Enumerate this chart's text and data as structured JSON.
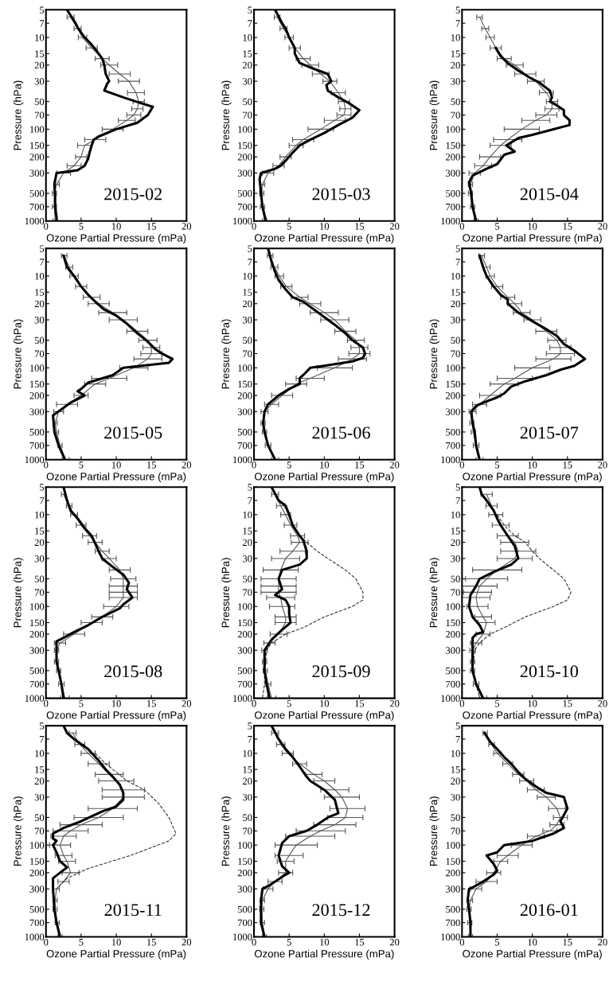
{
  "chart_data": [
    {
      "type": "line",
      "xlabel": "Ozone Partial Pressure (mPa)",
      "ylabel": "Pressure (hPa)",
      "annotations": [
        "2015-02"
      ],
      "log": "y",
      "xlim": [
        0,
        20
      ],
      "ylim": [
        1000,
        5
      ],
      "xticks": [
        0,
        5,
        10,
        15,
        20
      ],
      "yticks": [
        5,
        7,
        10,
        15,
        20,
        30,
        50,
        70,
        100,
        150,
        200,
        300,
        500,
        700,
        1000
      ],
      "series": [
        {
          "color": "#000000",
          "line_style": "solid",
          "x": [
            3,
            4.2,
            4.6,
            5.5,
            6.5,
            7.2,
            8,
            8.3,
            8.5,
            9,
            8.7,
            8.3,
            11,
            13.5,
            15.2,
            14.5,
            13,
            10,
            7.5,
            6.8,
            6.5,
            6.2,
            6,
            5.5,
            4.5,
            1.5,
            1.2,
            1.3,
            1.3,
            1.5,
            1.5
          ],
          "values": [
            5,
            7,
            8,
            10,
            12,
            14,
            17,
            20,
            25,
            30,
            32,
            38,
            45,
            52,
            57,
            70,
            85,
            100,
            120,
            130,
            150,
            180,
            210,
            250,
            280,
            300,
            400,
            550,
            700,
            900,
            1000
          ]
        },
        {
          "color": "#555555",
          "line_style": "solid",
          "x": [
            3.5,
            4.5,
            5.2,
            6.5,
            8,
            9,
            10.5,
            11.8,
            12.8,
            13.2,
            13,
            12.5,
            11.5,
            9.5,
            7,
            5.5,
            5,
            4,
            2.5,
            1.5,
            1.2,
            1.2,
            1.3
          ],
          "values": [
            6,
            8,
            10,
            13,
            17,
            20,
            25,
            30,
            40,
            50,
            60,
            70,
            80,
            100,
            130,
            150,
            200,
            250,
            300,
            400,
            500,
            700,
            1000
          ],
          "xerrors": [
            0.5,
            0.5,
            0.6,
            0.8,
            1,
            1.2,
            1.5,
            1.5,
            1.2,
            0.8,
            0.8,
            1,
            1.2,
            1.5,
            1.5,
            1,
            0.8,
            1,
            1,
            0.4,
            0.3,
            0.3,
            0.3
          ]
        }
      ]
    },
    {
      "type": "line",
      "xlabel": "Ozone Partial Pressure (mPa)",
      "ylabel": "Pressure (hPa)",
      "annotations": [
        "2015-03"
      ],
      "log": "y",
      "xlim": [
        0,
        20
      ],
      "ylim": [
        1000,
        5
      ],
      "xticks": [
        0,
        5,
        10,
        15,
        20
      ],
      "yticks": [
        5,
        7,
        10,
        15,
        20,
        30,
        50,
        70,
        100,
        150,
        200,
        300,
        500,
        700,
        1000
      ],
      "series": [
        {
          "color": "#000000",
          "line_style": "solid",
          "x": [
            3,
            4,
            4.5,
            5,
            5.8,
            5.8,
            6.5,
            8.5,
            10.5,
            11,
            10.3,
            10.5,
            12,
            13.5,
            15,
            14,
            12,
            10,
            8,
            6.5,
            5.5,
            4.5,
            3.8,
            3,
            1,
            0.8,
            1,
            1.2,
            1.7
          ],
          "values": [
            5,
            7,
            8,
            10,
            13,
            15,
            19,
            22,
            25,
            30,
            33,
            38,
            45,
            52,
            62,
            75,
            90,
            110,
            130,
            150,
            180,
            220,
            250,
            270,
            300,
            350,
            500,
            700,
            1000
          ]
        },
        {
          "color": "#555555",
          "line_style": "solid",
          "x": [
            3.3,
            4.2,
            5,
            5.8,
            7,
            8,
            9.5,
            10.8,
            12,
            12.8,
            13,
            12.8,
            11.5,
            9.5,
            7,
            6,
            4.5,
            3.5,
            2,
            1.2,
            1.1,
            1.2,
            1.5
          ],
          "values": [
            6,
            8,
            10,
            13,
            17,
            20,
            25,
            30,
            40,
            50,
            60,
            70,
            80,
            100,
            130,
            150,
            200,
            250,
            300,
            400,
            500,
            700,
            1000
          ],
          "xerrors": [
            0.4,
            0.5,
            0.6,
            0.8,
            1,
            1.2,
            1.2,
            1,
            1,
            0.8,
            0.8,
            1,
            1.5,
            1.8,
            1.5,
            1,
            0.8,
            0.8,
            0.8,
            0.3,
            0.3,
            0.3,
            0.3
          ]
        }
      ]
    },
    {
      "type": "line",
      "xlabel": "Ozone Partial Pressure (mPa)",
      "ylabel": "Pressure (hPa)",
      "annotations": [
        "2015-04"
      ],
      "log": "y",
      "xlim": [
        0,
        20
      ],
      "ylim": [
        1000,
        5
      ],
      "xticks": [
        0,
        5,
        10,
        15,
        20
      ],
      "yticks": [
        5,
        7,
        10,
        15,
        20,
        30,
        50,
        70,
        100,
        150,
        200,
        300,
        500,
        700,
        1000
      ],
      "series": [
        {
          "color": "#000000",
          "line_style": "solid",
          "x": [
            4.8,
            5.5,
            6.5,
            8,
            9.5,
            11,
            12.5,
            12.8,
            12.5,
            13.5,
            14.5,
            14.5,
            15.3,
            15.3,
            13,
            10,
            8,
            6.3,
            7.5,
            6,
            5,
            3.5,
            1.5,
            1,
            1.3,
            1.5,
            2
          ],
          "values": [
            13,
            16,
            19,
            23,
            27,
            31,
            38,
            45,
            50,
            55,
            62,
            70,
            80,
            90,
            100,
            115,
            125,
            150,
            175,
            190,
            240,
            270,
            320,
            380,
            500,
            700,
            1000
          ]
        },
        {
          "color": "#555555",
          "line_style": "solid",
          "x": [
            2.5,
            3.3,
            4,
            4.8,
            6,
            7.5,
            9,
            10.5,
            12,
            12.8,
            12.8,
            12,
            10.5,
            8.5,
            6.5,
            5.5,
            4,
            3,
            1.8,
            1.2,
            1.2,
            1.5,
            2
          ],
          "values": [
            6,
            8,
            10,
            13,
            17,
            20,
            25,
            30,
            40,
            50,
            60,
            70,
            80,
            100,
            130,
            150,
            200,
            250,
            300,
            400,
            500,
            700,
            1000
          ],
          "xerrors": [
            0.4,
            0.5,
            0.6,
            0.8,
            1,
            1.2,
            1.5,
            1.2,
            1,
            0.8,
            1,
            1.5,
            2,
            2.5,
            2,
            1.5,
            1.5,
            1.2,
            0.8,
            0.3,
            0.3,
            0.3,
            0.3
          ]
        }
      ]
    },
    {
      "type": "line",
      "xlabel": "Ozone Partial Pressure (mPa)",
      "ylabel": "Pressure (hPa)",
      "annotations": [
        "2015-05"
      ],
      "log": "y",
      "xlim": [
        0,
        20
      ],
      "ylim": [
        1000,
        5
      ],
      "xticks": [
        0,
        5,
        10,
        15,
        20
      ],
      "yticks": [
        5,
        7,
        10,
        15,
        20,
        30,
        50,
        70,
        100,
        150,
        200,
        300,
        500,
        700,
        1000
      ],
      "series": [
        {
          "color": "#000000",
          "line_style": "solid",
          "x": [
            2.5,
            3,
            4,
            5,
            6,
            7,
            8.2,
            10,
            11.5,
            13,
            14.5,
            15.5,
            16.5,
            18,
            17.5,
            11,
            9.5,
            6,
            5,
            4.5,
            5.5,
            3.5,
            1,
            1.2,
            1.8,
            2.7
          ],
          "values": [
            6,
            8,
            10,
            13,
            16,
            19,
            23,
            27,
            33,
            42,
            52,
            62,
            70,
            80,
            88,
            100,
            120,
            145,
            170,
            180,
            200,
            240,
            330,
            500,
            700,
            1000
          ]
        },
        {
          "color": "#555555",
          "line_style": "solid",
          "x": [
            2.6,
            3.3,
            4,
            5,
            6.5,
            7.5,
            9.5,
            11,
            13,
            14.5,
            15,
            15,
            14.5,
            12.5,
            9,
            7,
            5,
            3,
            1.8,
            1.3,
            1.5,
            2,
            2.8
          ],
          "values": [
            6,
            8,
            10,
            13,
            17,
            20,
            25,
            30,
            40,
            50,
            60,
            70,
            80,
            100,
            130,
            150,
            200,
            250,
            300,
            400,
            500,
            700,
            1000
          ],
          "xerrors": [
            0.4,
            0.5,
            0.6,
            0.8,
            1.2,
            1.5,
            2,
            2,
            1.5,
            1.3,
            1.2,
            1.5,
            2,
            2,
            2.5,
            1.5,
            1,
            1.5,
            0.7,
            0.3,
            0.3,
            0.3,
            0.5
          ]
        }
      ]
    },
    {
      "type": "line",
      "xlabel": "Ozone Partial Pressure (mPa)",
      "ylabel": "Pressure (hPa)",
      "annotations": [
        "2015-06"
      ],
      "log": "y",
      "xlim": [
        0,
        20
      ],
      "ylim": [
        1000,
        5
      ],
      "xticks": [
        0,
        5,
        10,
        15,
        20
      ],
      "yticks": [
        5,
        7,
        10,
        15,
        20,
        30,
        50,
        70,
        100,
        150,
        200,
        300,
        500,
        700,
        1000
      ],
      "series": [
        {
          "color": "#000000",
          "line_style": "solid",
          "x": [
            2,
            2.5,
            3,
            3.5,
            4.5,
            5.5,
            7,
            8.5,
            10,
            11.5,
            13,
            14,
            15.5,
            15.8,
            15.5,
            14,
            10,
            8,
            7,
            6.5,
            6.5,
            5,
            3.5,
            2,
            1.5,
            1.3,
            1.5,
            2,
            3
          ],
          "values": [
            5,
            7,
            9,
            11,
            14,
            17,
            19,
            23,
            28,
            34,
            42,
            50,
            60,
            70,
            78,
            85,
            95,
            100,
            120,
            130,
            150,
            170,
            200,
            250,
            300,
            400,
            500,
            700,
            1000
          ]
        },
        {
          "color": "#555555",
          "line_style": "solid",
          "x": [
            2.3,
            2.9,
            3.6,
            4.6,
            6.5,
            8,
            10,
            11.5,
            13,
            14.5,
            15,
            15,
            14,
            11.5,
            8,
            6,
            4,
            2.5,
            1.5,
            1.3,
            1.5,
            2,
            3
          ],
          "values": [
            6,
            8,
            10,
            13,
            17,
            20,
            25,
            30,
            40,
            50,
            60,
            70,
            80,
            100,
            130,
            150,
            200,
            250,
            300,
            400,
            500,
            700,
            1000
          ],
          "xerrors": [
            0.4,
            0.5,
            0.6,
            0.8,
            1.2,
            1.5,
            2,
            2,
            1.5,
            1.2,
            1.2,
            1.5,
            2,
            2.5,
            2,
            1.5,
            1.5,
            1,
            0.5,
            0.3,
            0.3,
            0.4,
            0.5
          ]
        }
      ]
    },
    {
      "type": "line",
      "xlabel": "Ozone Partial Pressure (mPa)",
      "ylabel": "Pressure (hPa)",
      "annotations": [
        "2015-07"
      ],
      "log": "y",
      "xlim": [
        0,
        20
      ],
      "ylim": [
        1000,
        5
      ],
      "xticks": [
        0,
        5,
        10,
        15,
        20
      ],
      "yticks": [
        5,
        7,
        10,
        15,
        20,
        30,
        50,
        70,
        100,
        150,
        200,
        300,
        500,
        700,
        1000
      ],
      "series": [
        {
          "color": "#000000",
          "line_style": "solid",
          "x": [
            2.5,
            3,
            3.5,
            4.5,
            5.5,
            6.5,
            6.5,
            8,
            10,
            12,
            13.5,
            14.5,
            16,
            17.5,
            16,
            14,
            12,
            9,
            7,
            6,
            5,
            3,
            2,
            1.3,
            1.5,
            1.8,
            2,
            2.5
          ],
          "values": [
            6,
            8,
            10,
            13,
            16,
            18,
            20,
            25,
            31,
            38,
            45,
            55,
            65,
            80,
            95,
            105,
            120,
            140,
            160,
            190,
            210,
            240,
            260,
            300,
            400,
            500,
            700,
            1000
          ]
        },
        {
          "color": "#555555",
          "line_style": "solid",
          "x": [
            2.8,
            3.5,
            4,
            5,
            6.5,
            7.5,
            8.5,
            10,
            12,
            13.5,
            14,
            14,
            13,
            10,
            7.5,
            6,
            4,
            2.5,
            1.5,
            1.4,
            1.6,
            2,
            2.5
          ],
          "values": [
            6,
            8,
            10,
            13,
            17,
            20,
            25,
            30,
            40,
            50,
            60,
            70,
            80,
            100,
            130,
            150,
            200,
            250,
            300,
            400,
            500,
            700,
            1000
          ],
          "xerrors": [
            0.4,
            0.5,
            0.6,
            0.8,
            1,
            1,
            1.2,
            1.2,
            1.5,
            1.3,
            1.5,
            2,
            2.5,
            2.5,
            2.5,
            2,
            1.5,
            1,
            0.5,
            0.3,
            0.3,
            0.4,
            0.5
          ]
        }
      ]
    },
    {
      "type": "line",
      "xlabel": "Ozone Partial Pressure (mPa)",
      "ylabel": "Pressure (hPa)",
      "annotations": [
        "2015-08"
      ],
      "log": "y",
      "xlim": [
        0,
        20
      ],
      "ylim": [
        1000,
        5
      ],
      "xticks": [
        0,
        5,
        10,
        15,
        20
      ],
      "yticks": [
        5,
        7,
        10,
        15,
        20,
        30,
        50,
        70,
        100,
        150,
        200,
        300,
        500,
        700,
        1000
      ],
      "series": [
        {
          "color": "#000000",
          "line_style": "solid",
          "x": [
            2.5,
            3,
            3.5,
            4.5,
            5.5,
            6.5,
            7.5,
            8,
            9.5,
            11,
            11.8,
            11.5,
            12.3,
            11,
            10.5,
            8,
            6,
            4,
            3,
            1.5,
            1.5,
            1.5,
            1.8,
            2.2,
            2.5
          ],
          "values": [
            5,
            7,
            9,
            11,
            14,
            17,
            25,
            30,
            37,
            45,
            55,
            65,
            80,
            95,
            105,
            130,
            160,
            190,
            210,
            240,
            300,
            400,
            500,
            700,
            1000
          ]
        },
        {
          "color": "#555555",
          "line_style": "solid",
          "x": [
            2.5,
            3.3,
            4,
            5,
            6.2,
            7,
            8,
            9,
            10.5,
            11,
            11,
            11,
            11,
            10,
            8,
            6.5,
            4,
            2,
            1.5,
            1.5,
            1.8,
            2.2,
            2.7
          ],
          "values": [
            6,
            8,
            10,
            13,
            17,
            20,
            25,
            30,
            40,
            50,
            60,
            70,
            80,
            100,
            130,
            150,
            200,
            250,
            300,
            400,
            500,
            700,
            1000
          ],
          "xerrors": [
            0.3,
            0.4,
            0.5,
            0.7,
            1,
            1,
            1,
            1,
            1.5,
            1.8,
            2,
            2,
            2,
            1.8,
            1.5,
            1.5,
            1.5,
            0.8,
            0.3,
            0.3,
            0.3,
            0.4,
            0.6
          ]
        }
      ]
    },
    {
      "type": "line",
      "xlabel": "Ozone Partial Pressure (mPa)",
      "ylabel": "Pressure (hPa)",
      "annotations": [
        "2015-09"
      ],
      "log": "y",
      "xlim": [
        0,
        20
      ],
      "ylim": [
        1000,
        5
      ],
      "xticks": [
        0,
        5,
        10,
        15,
        20
      ],
      "yticks": [
        5,
        7,
        10,
        15,
        20,
        30,
        50,
        70,
        100,
        150,
        200,
        300,
        500,
        700,
        1000
      ],
      "series": [
        {
          "color": "#000000",
          "line_style": "solid",
          "x": [
            2.5,
            3.5,
            4.5,
            5,
            5.5,
            6.5,
            7,
            7.5,
            7.5,
            6.5,
            4,
            3.5,
            4,
            3,
            4.5,
            5,
            5,
            5.2,
            4,
            2.5,
            1.5,
            1.5,
            1.8,
            2.2
          ],
          "values": [
            5,
            7,
            8,
            10,
            13,
            17,
            19,
            25,
            30,
            35,
            40,
            50,
            65,
            75,
            85,
            100,
            120,
            150,
            180,
            230,
            300,
            500,
            700,
            1000
          ]
        },
        {
          "color": "#555555",
          "line_style": "solid",
          "x": [
            3,
            3.8,
            4.5,
            5.2,
            6.2,
            6.5,
            5.5,
            4.5,
            3.8,
            3.5,
            3.5,
            3.5,
            3.8,
            4,
            4.5,
            4.5,
            3.5,
            2.2,
            1.5,
            1.5,
            1.6,
            2,
            2.5
          ],
          "values": [
            6,
            8,
            10,
            13,
            17,
            20,
            25,
            30,
            40,
            50,
            60,
            70,
            80,
            100,
            130,
            150,
            200,
            250,
            300,
            400,
            500,
            700,
            1000
          ],
          "xerrors": [
            0.5,
            0.6,
            0.7,
            0.9,
            1,
            1.2,
            1.8,
            2,
            2.5,
            2.5,
            2.5,
            2.5,
            2,
            1.8,
            1.5,
            1.5,
            1.2,
            0.8,
            0.4,
            0.3,
            0.3,
            0.4,
            0.6
          ]
        },
        {
          "color": "#333333",
          "line_style": "dashed",
          "x": [
            6.5,
            7.5,
            9,
            10.5,
            13,
            14.5,
            15.5,
            15.5,
            14,
            10,
            7,
            4.5,
            2.5,
            1.8,
            1.5,
            1.5,
            1.2
          ],
          "values": [
            17,
            20,
            25,
            30,
            40,
            50,
            70,
            85,
            100,
            130,
            170,
            200,
            250,
            300,
            500,
            700,
            1000
          ]
        }
      ]
    },
    {
      "type": "line",
      "xlabel": "Ozone Partial Pressure (mPa)",
      "ylabel": "Pressure (hPa)",
      "annotations": [
        "2015-10"
      ],
      "log": "y",
      "xlim": [
        0,
        20
      ],
      "ylim": [
        1000,
        5
      ],
      "xticks": [
        0,
        5,
        10,
        15,
        20
      ],
      "yticks": [
        5,
        7,
        10,
        15,
        20,
        30,
        50,
        70,
        100,
        150,
        200,
        300,
        500,
        700,
        1000
      ],
      "series": [
        {
          "color": "#000000",
          "line_style": "solid",
          "x": [
            2.5,
            2.8,
            3.5,
            4.5,
            5,
            5.5,
            6.5,
            7.5,
            8,
            7,
            4.5,
            2.5,
            2,
            1.2,
            1,
            1.5,
            2.5,
            3,
            2,
            1.5,
            1.5,
            1.5,
            2,
            3
          ],
          "values": [
            5,
            6,
            7,
            9,
            11,
            13,
            17,
            22,
            30,
            35,
            42,
            50,
            60,
            75,
            100,
            130,
            160,
            190,
            200,
            220,
            300,
            500,
            700,
            1000
          ]
        },
        {
          "color": "#555555",
          "line_style": "solid",
          "x": [
            3.5,
            4.2,
            4.8,
            5.5,
            6.5,
            7.5,
            8,
            7.5,
            5,
            3.5,
            2.5,
            2.2,
            2,
            2.2,
            3,
            3.5,
            3,
            2,
            1.5,
            1.5,
            1.5,
            2,
            3
          ],
          "values": [
            6,
            8,
            10,
            13,
            17,
            20,
            25,
            30,
            40,
            50,
            60,
            70,
            80,
            100,
            130,
            150,
            200,
            250,
            300,
            400,
            500,
            700,
            1000
          ],
          "xerrors": [
            0.8,
            0.8,
            1,
            1.2,
            1.5,
            2,
            2.5,
            2.5,
            3.5,
            3,
            2.5,
            2,
            2,
            1.5,
            1.2,
            1.2,
            1,
            0.8,
            0.4,
            0.3,
            0.3,
            0.4,
            0.5
          ]
        },
        {
          "color": "#333333",
          "line_style": "dashed",
          "x": [
            5,
            6,
            7.5,
            9,
            10,
            11,
            13,
            14.5,
            15.5,
            15,
            13,
            9,
            6,
            4,
            2.5,
            1.8,
            1.5,
            2,
            2.5
          ],
          "values": [
            10,
            13,
            17,
            20,
            25,
            30,
            40,
            50,
            70,
            85,
            100,
            130,
            170,
            200,
            250,
            300,
            500,
            700,
            1000
          ]
        }
      ]
    },
    {
      "type": "line",
      "xlabel": "Ozone Partial Pressure (mPa)",
      "ylabel": "Pressure (hPa)",
      "annotations": [
        "2015-11"
      ],
      "log": "y",
      "xlim": [
        0,
        20
      ],
      "ylim": [
        1000,
        5
      ],
      "xticks": [
        0,
        5,
        10,
        15,
        20
      ],
      "yticks": [
        5,
        7,
        10,
        15,
        20,
        30,
        50,
        70,
        100,
        150,
        200,
        300,
        500,
        700,
        1000
      ],
      "series": [
        {
          "color": "#000000",
          "line_style": "solid",
          "x": [
            2.5,
            3,
            4,
            6,
            7.5,
            8.5,
            9.5,
            10.5,
            11,
            11,
            10,
            8,
            5,
            2.5,
            1,
            1,
            1.5,
            1,
            1.5,
            2,
            3,
            2,
            1,
            1,
            1.2,
            1.5,
            2
          ],
          "values": [
            5,
            6,
            7,
            9,
            12,
            15,
            18,
            22,
            27,
            32,
            38,
            43,
            55,
            65,
            75,
            85,
            90,
            100,
            120,
            150,
            175,
            200,
            230,
            300,
            500,
            700,
            1000
          ]
        },
        {
          "color": "#555555",
          "line_style": "solid",
          "x": [
            3.8,
            4.8,
            6,
            7.5,
            9,
            10,
            11,
            11,
            9.5,
            7.5,
            5,
            3.5,
            2.5,
            2,
            2.5,
            3,
            3.5,
            2.5,
            1.5,
            1.3,
            1.3,
            1.6,
            2
          ],
          "values": [
            6,
            8,
            10,
            13,
            17,
            20,
            25,
            30,
            40,
            50,
            60,
            70,
            80,
            100,
            130,
            150,
            200,
            250,
            300,
            400,
            500,
            700,
            1000
          ],
          "xerrors": [
            0.5,
            0.7,
            1,
            1.5,
            2,
            2.5,
            3,
            3,
            3.5,
            3.5,
            3,
            2.5,
            1.8,
            1.5,
            1.2,
            1.2,
            1.2,
            0.8,
            0.4,
            0.3,
            0.3,
            0.3,
            0.3
          ]
        },
        {
          "color": "#333333",
          "line_style": "dashed",
          "x": [
            7,
            8.5,
            10,
            11.5,
            14,
            16,
            17.5,
            18.5,
            17.5,
            12,
            6,
            3,
            1.5
          ],
          "values": [
            10,
            13,
            16,
            20,
            25,
            35,
            50,
            75,
            90,
            130,
            180,
            230,
            300
          ]
        }
      ]
    },
    {
      "type": "line",
      "xlabel": "Ozone Partial Pressure (mPa)",
      "ylabel": "Pressure (hPa)",
      "annotations": [
        "2015-12"
      ],
      "log": "y",
      "xlim": [
        0,
        20
      ],
      "ylim": [
        1000,
        5
      ],
      "xticks": [
        0,
        5,
        10,
        15,
        20
      ],
      "yticks": [
        5,
        7,
        10,
        15,
        20,
        30,
        50,
        70,
        100,
        150,
        200,
        300,
        500,
        700,
        1000
      ],
      "series": [
        {
          "color": "#000000",
          "line_style": "solid",
          "x": [
            2.5,
            3.5,
            4.5,
            5.5,
            6.5,
            7.5,
            8,
            10,
            11.5,
            12,
            10.5,
            9,
            7.5,
            5,
            4,
            3.5,
            4,
            5,
            4.5,
            3,
            2,
            1.2,
            1,
            1,
            1,
            1.5
          ],
          "values": [
            5,
            7,
            9,
            11,
            14,
            18,
            20,
            25,
            32,
            45,
            50,
            60,
            70,
            80,
            95,
            130,
            170,
            200,
            210,
            250,
            280,
            300,
            400,
            500,
            700,
            1000
          ]
        },
        {
          "color": "#555555",
          "line_style": "solid",
          "x": [
            3,
            3.8,
            4.8,
            6.5,
            8.5,
            10,
            11.5,
            12.5,
            13.3,
            13,
            11.5,
            9.5,
            8,
            6,
            5,
            4.5,
            4.5,
            3,
            2,
            1.2,
            1.1,
            1.2,
            1.5
          ],
          "values": [
            6,
            8,
            10,
            13,
            17,
            20,
            25,
            30,
            40,
            50,
            60,
            70,
            80,
            100,
            130,
            150,
            200,
            250,
            300,
            400,
            500,
            700,
            1000
          ],
          "xerrors": [
            0.5,
            0.6,
            0.8,
            1,
            1.2,
            1.5,
            2,
            2.5,
            2.5,
            2.5,
            3,
            3.5,
            3.5,
            3,
            2,
            1.2,
            1,
            1,
            0.7,
            0.3,
            0.3,
            0.3,
            0.3
          ]
        }
      ]
    },
    {
      "type": "line",
      "xlabel": "Ozone Partial Pressure (mPa)",
      "ylabel": "Pressure (hPa)",
      "annotations": [
        "2016-01"
      ],
      "log": "y",
      "xlim": [
        0,
        20
      ],
      "ylim": [
        1000,
        5
      ],
      "xticks": [
        0,
        5,
        10,
        15,
        20
      ],
      "yticks": [
        5,
        7,
        10,
        15,
        20,
        30,
        50,
        70,
        100,
        150,
        200,
        300,
        500,
        700,
        1000
      ],
      "series": [
        {
          "color": "#000000",
          "line_style": "solid",
          "x": [
            3.2,
            4,
            5,
            6,
            7,
            8,
            9,
            10.5,
            12,
            14.5,
            15,
            14,
            14.5,
            13,
            10,
            6,
            5,
            3.5,
            4.5,
            5,
            4.5,
            3,
            1.5,
            1,
            0.8,
            1,
            1.2,
            1.2
          ],
          "values": [
            6,
            7.5,
            9,
            11,
            13,
            16,
            19,
            23,
            27,
            30,
            40,
            55,
            65,
            75,
            90,
            100,
            120,
            130,
            160,
            190,
            210,
            250,
            290,
            300,
            400,
            500,
            700,
            1000
          ]
        },
        {
          "color": "#555555",
          "line_style": "solid",
          "x": [
            3.3,
            4.2,
            5,
            6.5,
            8,
            9.2,
            10.5,
            12,
            13.5,
            14,
            13.5,
            12.5,
            10.5,
            8.5,
            6.5,
            5.5,
            4.5,
            3.5,
            2,
            1.2,
            1,
            1.1,
            1.2
          ],
          "values": [
            6,
            8,
            10,
            13,
            17,
            20,
            25,
            30,
            40,
            50,
            60,
            70,
            80,
            100,
            130,
            150,
            200,
            250,
            300,
            400,
            500,
            700,
            1000
          ],
          "xerrors": [
            0.3,
            0.4,
            0.5,
            0.7,
            0.8,
            1,
            1.2,
            1.3,
            1.2,
            1,
            1,
            1,
            1.2,
            1.5,
            1.5,
            1,
            1,
            1.5,
            0.8,
            0.3,
            0.3,
            0.3,
            0.3
          ]
        }
      ]
    }
  ]
}
